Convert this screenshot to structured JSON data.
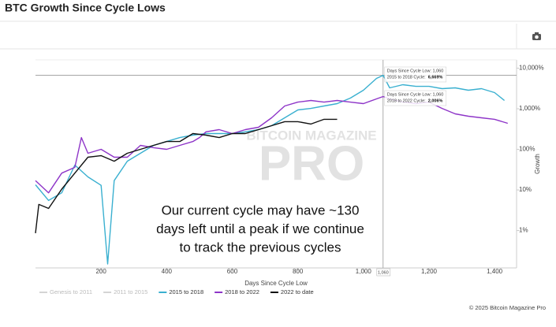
{
  "chart_data": {
    "type": "line",
    "title": "BTC Growth Since Cycle Lows",
    "x_label": "Days Since Cycle Low",
    "y_label": "Growth",
    "log_scale": true,
    "grid": false,
    "xlim": [
      0,
      1467
    ],
    "ylim": [
      0.12,
      16000
    ],
    "xticks": [
      200,
      400,
      600,
      800,
      {
        "value": 1000,
        "label": "1,000"
      },
      {
        "value": 1200,
        "label": "1,200"
      },
      {
        "value": 1400,
        "label": "1,400"
      }
    ],
    "yticks": [
      {
        "value": 1,
        "label": "1%"
      },
      {
        "value": 10,
        "label": "10%"
      },
      {
        "value": 100,
        "label": "100%"
      },
      {
        "value": 1000,
        "label": "1,000%"
      },
      {
        "value": 10000,
        "label": "10,000%"
      }
    ],
    "series": [
      {
        "name": "Genesis to 2011",
        "color": "#aaaaaa",
        "hidden": true
      },
      {
        "name": "2011 to 2015",
        "color": "#aaaaaa",
        "hidden": true
      },
      {
        "name": "2015 to 2018",
        "color": "#3ab0d0",
        "x": [
          0,
          40,
          80,
          120,
          160,
          200,
          220,
          240,
          280,
          320,
          360,
          400,
          440,
          480,
          520,
          560,
          600,
          640,
          680,
          720,
          760,
          800,
          840,
          880,
          920,
          960,
          1000,
          1040,
          1060,
          1080,
          1120,
          1160,
          1200,
          1240,
          1280,
          1320,
          1360,
          1400,
          1430
        ],
        "values": [
          13.4,
          5.5,
          8.5,
          41,
          21,
          13,
          0.15,
          17,
          51,
          80,
          125,
          156,
          195,
          224,
          245,
          245,
          245,
          270,
          306,
          383,
          598,
          935,
          1020,
          1170,
          1340,
          1830,
          2860,
          5600,
          6669,
          3270,
          3910,
          3570,
          3570,
          3130,
          3270,
          2860,
          3130,
          2500,
          1600
        ]
      },
      {
        "name": "2018 to 2022",
        "color": "#8e35c8",
        "x": [
          0,
          40,
          80,
          120,
          140,
          160,
          200,
          240,
          280,
          320,
          360,
          400,
          440,
          480,
          500,
          520,
          560,
          600,
          640,
          680,
          720,
          760,
          800,
          840,
          880,
          920,
          960,
          1000,
          1040,
          1060,
          1080,
          1120,
          1160,
          1200,
          1240,
          1280,
          1320,
          1360,
          1400,
          1440
        ],
        "values": [
          17,
          8.5,
          26,
          36,
          195,
          80,
          100,
          64,
          64,
          125,
          110,
          100,
          125,
          156,
          195,
          270,
          306,
          245,
          306,
          350,
          598,
          1170,
          1460,
          1600,
          1460,
          1600,
          1460,
          1340,
          1750,
          2006,
          1750,
          1460,
          1340,
          1460,
          1020,
          748,
          655,
          598,
          550,
          437
        ]
      },
      {
        "name": "2022 to date",
        "color": "#111111",
        "x": [
          0,
          10,
          40,
          80,
          120,
          160,
          200,
          240,
          280,
          320,
          360,
          400,
          440,
          480,
          520,
          560,
          600,
          640,
          680,
          720,
          760,
          800,
          840,
          880,
          920
        ],
        "values": [
          0.86,
          4.4,
          3.5,
          10.5,
          26,
          64,
          70,
          51,
          80,
          100,
          125,
          156,
          156,
          245,
          224,
          195,
          245,
          245,
          306,
          383,
          480,
          480,
          420,
          550,
          550
        ]
      }
    ],
    "crosshair": {
      "x": {
        "value": 1060,
        "label": "1,060"
      }
    },
    "tooltips": [
      {
        "series": 2,
        "index": 28,
        "head": "Days Since Cycle Low: 1,060",
        "text": "2015 to 2018 Cycle:",
        "value_label": "6,669%"
      },
      {
        "series": 3,
        "index": 29,
        "head": "Days Since Cycle Low: 1,060",
        "text": "2018 to 2022 Cycle:",
        "value_label": "2,006%"
      }
    ],
    "annotation": [
      "Our current cycle may have ~130",
      "days left until a peak if we continue",
      "to track the previous cycles"
    ],
    "watermark": [
      "BITCOIN MAGAZINE",
      "PRO"
    ],
    "footer": "© 2025 Bitcoin Magazine Pro"
  }
}
